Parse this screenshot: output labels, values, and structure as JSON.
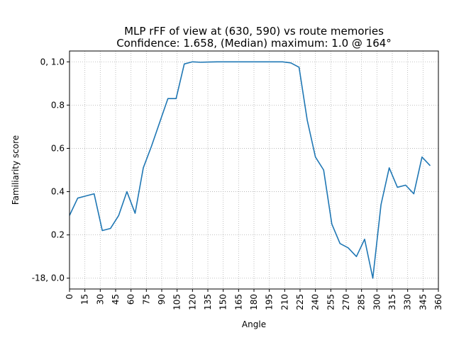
{
  "chart_data": {
    "type": "line",
    "title": "MLP rFF of view at (630, 590) vs route memories",
    "subtitle": "Confidence: 1.658, (Median) maximum: 1.0 @ 164°",
    "xlabel": "Angle",
    "ylabel": "Familiarity score",
    "xlim": [
      0,
      360
    ],
    "ylim": [
      -0.05,
      1.05
    ],
    "grid": true,
    "grid_style": "dotted",
    "legend": "none",
    "x_ticks": [
      0,
      15,
      30,
      45,
      60,
      75,
      90,
      105,
      120,
      135,
      150,
      165,
      180,
      195,
      210,
      225,
      240,
      255,
      270,
      285,
      300,
      315,
      330,
      345,
      360
    ],
    "x_tick_labels": [
      "0",
      "15",
      "30",
      "45",
      "60",
      "75",
      "90",
      "105",
      "120",
      "135",
      "150",
      "165",
      "180",
      "195",
      "210",
      "225",
      "240",
      "255",
      "270",
      "285",
      "300",
      "315",
      "330",
      "345",
      "360"
    ],
    "y_ticks": [
      0.0,
      0.2,
      0.4,
      0.6,
      0.8,
      1.0
    ],
    "y_tick_labels": [
      "-18, 0.0",
      "0.2",
      "0.4",
      "0.6",
      "0.8",
      "0, 1.0"
    ],
    "line_color": "#1f77b4",
    "series": [
      {
        "x": [
          0,
          8,
          16,
          24,
          32,
          40,
          48,
          56,
          64,
          72,
          80,
          88,
          96,
          104,
          112,
          120,
          128,
          136,
          144,
          152,
          160,
          168,
          176,
          184,
          192,
          200,
          208,
          216,
          224,
          232,
          240,
          248,
          256,
          264,
          272,
          280,
          288,
          296,
          304,
          312,
          320,
          328,
          336,
          344,
          352
        ],
        "y": [
          0.29,
          0.37,
          0.38,
          0.39,
          0.22,
          0.23,
          0.29,
          0.4,
          0.3,
          0.51,
          0.61,
          0.72,
          0.83,
          0.83,
          0.99,
          1.0,
          0.998,
          0.999,
          1.0,
          1.0,
          1.0,
          1.0,
          1.0,
          1.0,
          1.0,
          1.0,
          1.0,
          0.995,
          0.975,
          0.73,
          0.56,
          0.5,
          0.25,
          0.16,
          0.14,
          0.1,
          0.18,
          0.0,
          0.34,
          0.51,
          0.42,
          0.43,
          0.39,
          0.56,
          0.52
        ]
      }
    ]
  }
}
